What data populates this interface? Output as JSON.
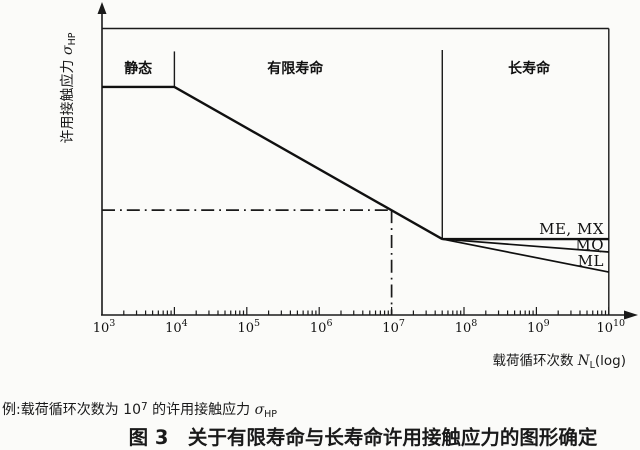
{
  "colors": {
    "ink": "#1a1a1a",
    "paper": "#fbfbf9"
  },
  "figure": {
    "title": "图 3　关于有限寿命与长寿命许用接触应力的图形确定"
  },
  "notes": {
    "example": {
      "prefix": "例:载荷循环次数为 10",
      "exp": "7",
      "mid": " 的许用接触应力 ",
      "sigma": "σ",
      "sub": "HP"
    }
  },
  "chart_data": {
    "type": "line",
    "x_scale": "log",
    "y_scale": "log-unlabeled",
    "x_exponent_range": [
      3,
      10
    ],
    "x_label": {
      "text": "载荷循环次数 ",
      "var": "N",
      "sub": "L",
      "suffix": "(log)"
    },
    "y_label": {
      "text": "许用接触应力 ",
      "sigma": "σ",
      "sub": "HP"
    },
    "x_ticks": [
      {
        "base": "10",
        "exp": "3"
      },
      {
        "base": "10",
        "exp": "4"
      },
      {
        "base": "10",
        "exp": "5"
      },
      {
        "base": "10",
        "exp": "6"
      },
      {
        "base": "10",
        "exp": "7"
      },
      {
        "base": "10",
        "exp": "8"
      },
      {
        "base": "10",
        "exp": "9"
      },
      {
        "base": "10",
        "exp": "10"
      }
    ],
    "regions": [
      {
        "label": "静态",
        "label_x_exp": 3.5
      },
      {
        "label": "有限寿命",
        "label_x_exp": 5.67
      },
      {
        "label": "长寿命",
        "label_x_exp": 8.9
      }
    ],
    "dividers": [
      {
        "x_exp": 4,
        "y_from": 0.92,
        "y_to": 0.796
      },
      {
        "x_exp": 7.7,
        "y_from": 0.925,
        "y_to": 0.265
      }
    ],
    "series": [
      {
        "name": "",
        "points": [
          [
            3,
            0.796
          ],
          [
            4,
            0.796
          ],
          [
            7.7,
            0.265
          ]
        ],
        "width": "thick"
      },
      {
        "name": "ME, MX",
        "points": [
          [
            7.7,
            0.265
          ],
          [
            10,
            0.265
          ]
        ],
        "width": "thick",
        "label_dy": -5
      },
      {
        "name": "MQ",
        "points": [
          [
            7.7,
            0.265
          ],
          [
            10,
            0.22
          ]
        ],
        "width": "thin",
        "label_dy": -2
      },
      {
        "name": "ML",
        "points": [
          [
            7.7,
            0.265
          ],
          [
            10,
            0.15
          ]
        ],
        "width": "thin",
        "label_dy": -6
      }
    ],
    "example_marker": {
      "x_exp": 7,
      "y": 0.366,
      "style": "dash-dot"
    }
  }
}
